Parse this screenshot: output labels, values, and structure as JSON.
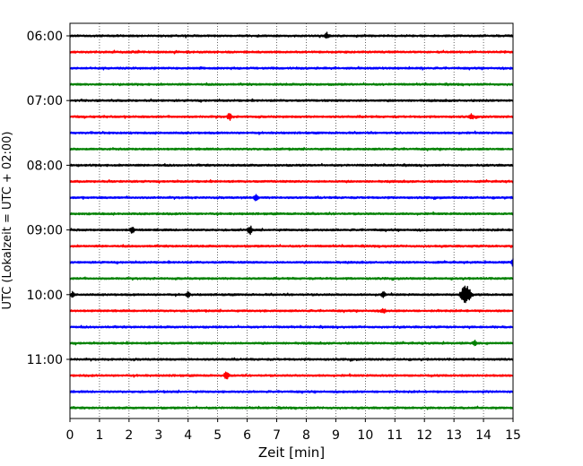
{
  "chart_data": {
    "type": "line",
    "title": "",
    "xlabel": "Zeit  [min]",
    "ylabel": "UTC (Lokalzeit = UTC + 02:00)",
    "xlim": [
      0,
      15
    ],
    "x_ticks": [
      0,
      1,
      2,
      3,
      4,
      5,
      6,
      7,
      8,
      9,
      10,
      11,
      12,
      13,
      14,
      15
    ],
    "y_tick_labels": [
      "06:00",
      "07:00",
      "08:00",
      "09:00",
      "10:00",
      "11:00"
    ],
    "y_tick_trace_index": [
      0,
      4,
      8,
      12,
      16,
      20
    ],
    "vertical_grid": true,
    "vertical_grid_style": "dotted",
    "trace_interval_minutes": 15,
    "first_trace_start": "06:00",
    "color_cycle": [
      "#000000",
      "#ff0000",
      "#0000ff",
      "#008000"
    ],
    "traces": [
      {
        "start": "06:00",
        "color": "#000000",
        "events": [
          {
            "t": 8.7,
            "amp": 0.35
          }
        ]
      },
      {
        "start": "06:15",
        "color": "#ff0000",
        "events": []
      },
      {
        "start": "06:30",
        "color": "#0000ff",
        "events": []
      },
      {
        "start": "06:45",
        "color": "#008000",
        "events": []
      },
      {
        "start": "07:00",
        "color": "#000000",
        "events": []
      },
      {
        "start": "07:15",
        "color": "#ff0000",
        "events": [
          {
            "t": 5.4,
            "amp": 0.45
          },
          {
            "t": 13.6,
            "amp": 0.35
          }
        ]
      },
      {
        "start": "07:30",
        "color": "#0000ff",
        "events": []
      },
      {
        "start": "07:45",
        "color": "#008000",
        "events": []
      },
      {
        "start": "08:00",
        "color": "#000000",
        "events": []
      },
      {
        "start": "08:15",
        "color": "#ff0000",
        "events": []
      },
      {
        "start": "08:30",
        "color": "#0000ff",
        "events": [
          {
            "t": 6.3,
            "amp": 0.4
          }
        ]
      },
      {
        "start": "08:45",
        "color": "#008000",
        "events": []
      },
      {
        "start": "09:00",
        "color": "#000000",
        "events": [
          {
            "t": 2.1,
            "amp": 0.4
          },
          {
            "t": 6.1,
            "amp": 0.5
          }
        ]
      },
      {
        "start": "09:15",
        "color": "#ff0000",
        "events": []
      },
      {
        "start": "09:30",
        "color": "#0000ff",
        "events": [
          {
            "t": 15.0,
            "amp": 0.45
          }
        ]
      },
      {
        "start": "09:45",
        "color": "#008000",
        "events": []
      },
      {
        "start": "10:00",
        "color": "#000000",
        "events": [
          {
            "t": 0.1,
            "amp": 0.3
          },
          {
            "t": 4.0,
            "amp": 0.3
          },
          {
            "t": 10.6,
            "amp": 0.35
          },
          {
            "t": 13.4,
            "amp": 1.3
          }
        ]
      },
      {
        "start": "10:15",
        "color": "#ff0000",
        "events": [
          {
            "t": 10.6,
            "amp": 0.3
          }
        ]
      },
      {
        "start": "10:30",
        "color": "#0000ff",
        "events": []
      },
      {
        "start": "10:45",
        "color": "#008000",
        "events": [
          {
            "t": 13.7,
            "amp": 0.3
          }
        ]
      },
      {
        "start": "11:00",
        "color": "#000000",
        "events": []
      },
      {
        "start": "11:15",
        "color": "#ff0000",
        "events": [
          {
            "t": 5.3,
            "amp": 0.5
          }
        ]
      },
      {
        "start": "11:30",
        "color": "#0000ff",
        "events": []
      },
      {
        "start": "11:45",
        "color": "#008000",
        "events": []
      }
    ]
  }
}
